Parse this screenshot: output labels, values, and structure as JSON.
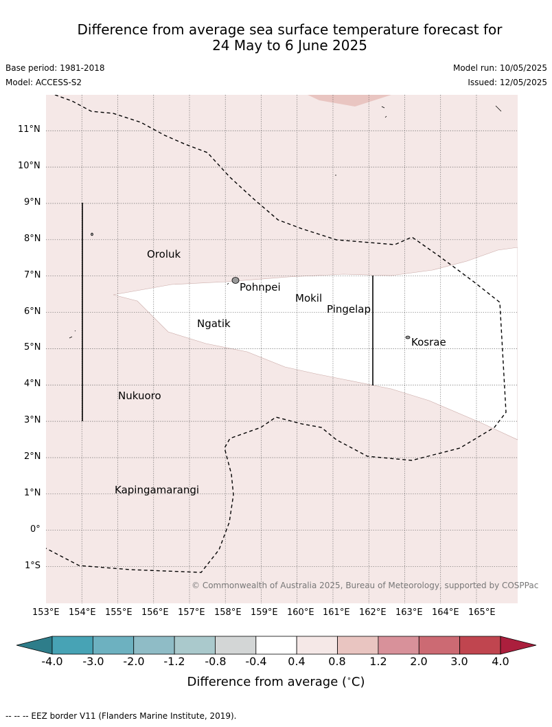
{
  "header": {
    "title_line1": "Difference from average sea surface temperature forecast for",
    "title_line2": "24 May to 6 June 2025",
    "base_period": "Base period: 1981-2018",
    "model": "Model: ACCESS-S2",
    "model_run": "Model run: 10/05/2025",
    "issued": "Issued: 12/05/2025"
  },
  "map": {
    "lon_range": [
      153,
      166
    ],
    "lat_range": [
      -2,
      12
    ],
    "lon_ticks": [
      "153°E",
      "154°E",
      "155°E",
      "156°E",
      "157°E",
      "158°E",
      "159°E",
      "160°E",
      "161°E",
      "162°E",
      "163°E",
      "164°E",
      "165°E"
    ],
    "lat_ticks": [
      "11°N",
      "10°N",
      "9°N",
      "8°N",
      "7°N",
      "6°N",
      "5°N",
      "4°N",
      "3°N",
      "2°N",
      "1°N",
      "0°",
      "1°S"
    ],
    "places": {
      "oroluk": "Oroluk",
      "pohnpei": "Pohnpei",
      "mokil": "Mokil",
      "pingelap": "Pingelap",
      "ngatik": "Ngatik",
      "kosrae": "Kosrae",
      "nukuoro": "Nukuoro",
      "kapingamarangi": "Kapingamarangi"
    },
    "copyright": "© Commonwealth of Australia 2025, Bureau of Meteorology, supported by COSPPac",
    "colors": {
      "anomaly_0_4_to_0_8": "#f5e8e7",
      "anomaly_0_8_to_1_2": "#e9c5c1",
      "neutral": "#ffffff"
    }
  },
  "colorbar": {
    "title": "Difference from average ($^\\circ$C)",
    "title_text": "Difference from average (",
    "title_unit": "C)",
    "labels": [
      "-4.0",
      "-3.0",
      "-2.0",
      "-1.2",
      "-0.8",
      "-0.4",
      "0.4",
      "0.8",
      "1.2",
      "2.0",
      "3.0",
      "4.0"
    ],
    "colors": [
      "#2e7d8a",
      "#47a3b5",
      "#6db1c0",
      "#8fbcc6",
      "#aac9cc",
      "#d3d6d6",
      "#ffffff",
      "#f5e8e7",
      "#e9c5c1",
      "#d8919a",
      "#cc6a73",
      "#c0454f",
      "#ab1f3d"
    ]
  },
  "footer": {
    "legend": "--  --  -- EEZ border V11 (Flanders Marine Institute, 2019)."
  }
}
